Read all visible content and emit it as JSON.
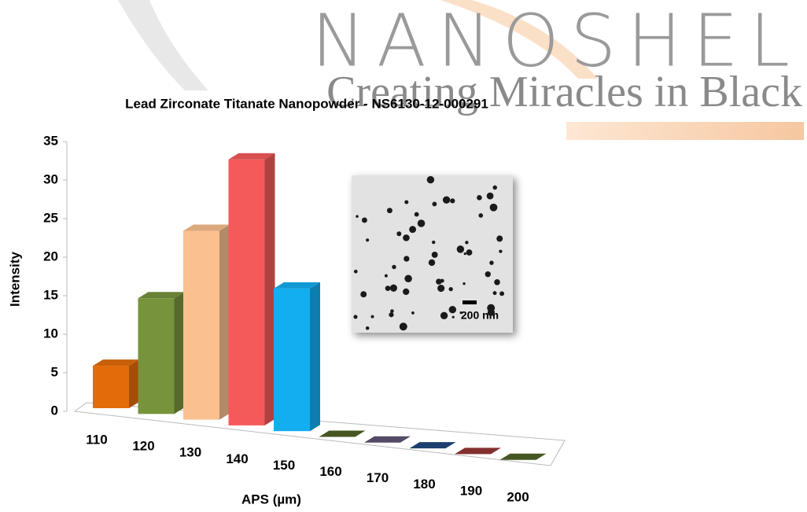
{
  "logo": {
    "name": "NANOSHEL",
    "tagline": "Creating Miracles in Black"
  },
  "inset": {
    "scale_label": "200 nm"
  },
  "chart_data": {
    "type": "bar3d",
    "title": "Lead Zirconate Titanate Nanopowder - NS6130-12-000291",
    "x_label": "APS (µm)",
    "y_label": "Intensity",
    "categories": [
      "110",
      "120",
      "130",
      "140",
      "150",
      "160",
      "170",
      "180",
      "190",
      "200"
    ],
    "values": [
      5.5,
      15,
      24.5,
      34.5,
      18.5,
      0,
      0,
      0,
      0,
      0
    ],
    "colors": [
      "#e36c0a",
      "#77933c",
      "#fac090",
      "#f55a5a",
      "#13aef0",
      "#4f6228",
      "#5f5475",
      "#1f497d",
      "#953735",
      "#4f6228"
    ],
    "ylim": [
      0,
      35
    ],
    "yticks": [
      0,
      5,
      10,
      15,
      20,
      25,
      30,
      35
    ]
  }
}
